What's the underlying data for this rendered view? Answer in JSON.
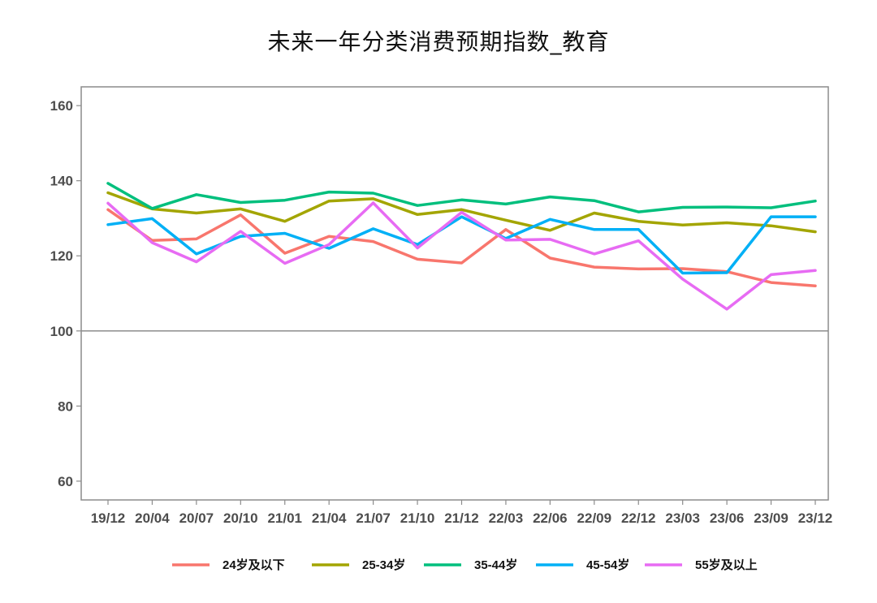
{
  "chart_data": {
    "type": "line",
    "title": "未来一年分类消费预期指数_教育",
    "xlabel": "",
    "ylabel": "",
    "ylim": [
      55,
      165
    ],
    "yticks": [
      60,
      80,
      100,
      120,
      140,
      160
    ],
    "reference_line": 100,
    "grid": false,
    "legend_position": "bottom",
    "categories": [
      "19/12",
      "20/04",
      "20/07",
      "20/10",
      "21/01",
      "21/04",
      "21/07",
      "21/10",
      "21/12",
      "22/03",
      "22/06",
      "22/09",
      "22/12",
      "23/03",
      "23/06",
      "23/09",
      "23/12"
    ],
    "series": [
      {
        "name": "24岁及以下",
        "color": "#F8766D",
        "values": [
          132.3,
          124.1,
          124.5,
          130.9,
          120.7,
          125.2,
          123.8,
          119.1,
          118.1,
          127.0,
          119.4,
          117.0,
          116.5,
          116.6,
          115.8,
          112.9,
          112.0
        ]
      },
      {
        "name": "25-34岁",
        "color": "#A3A500",
        "values": [
          136.8,
          132.5,
          131.4,
          132.5,
          129.2,
          134.6,
          135.2,
          131.0,
          132.3,
          129.5,
          126.8,
          131.4,
          129.2,
          128.2,
          128.8,
          128.0,
          126.4
        ]
      },
      {
        "name": "35-44岁",
        "color": "#00BF7D",
        "values": [
          139.3,
          132.6,
          136.3,
          134.2,
          134.8,
          137.0,
          136.7,
          133.4,
          134.9,
          133.8,
          135.7,
          134.7,
          131.7,
          132.9,
          133.0,
          132.8,
          134.6
        ]
      },
      {
        "name": "45-54岁",
        "color": "#00B0F6",
        "values": [
          128.3,
          129.9,
          120.5,
          125.2,
          126.0,
          122.0,
          127.2,
          123.0,
          130.4,
          124.6,
          129.7,
          127.0,
          127.0,
          115.4,
          115.5,
          130.4,
          130.4
        ]
      },
      {
        "name": "55岁及以上",
        "color": "#E76BF3",
        "values": [
          134.0,
          123.5,
          118.4,
          126.5,
          118.0,
          123.0,
          134.1,
          122.1,
          131.6,
          124.2,
          124.4,
          120.5,
          124.0,
          113.8,
          105.8,
          115.0,
          116.1
        ]
      }
    ]
  }
}
